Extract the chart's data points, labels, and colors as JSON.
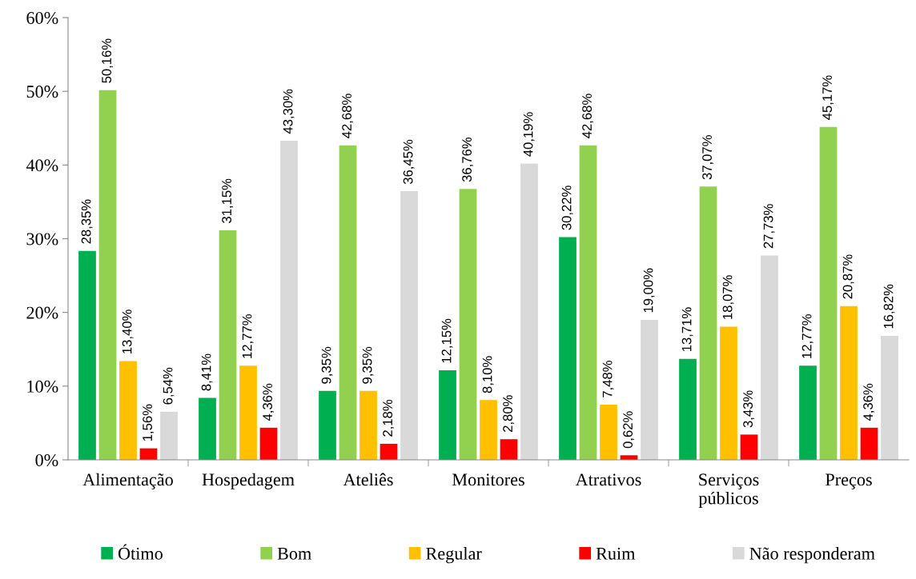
{
  "chart_data": {
    "type": "bar",
    "categories": [
      "Alimentação",
      "Hospedagem",
      "Ateliês",
      "Monitores",
      "Atrativos",
      "Serviços públicos",
      "Preços"
    ],
    "series": [
      {
        "name": "Ótimo",
        "color": "#00b050",
        "values": [
          28.35,
          8.41,
          9.35,
          12.15,
          30.22,
          13.71,
          12.77
        ],
        "value_labels": [
          "28,35%",
          "8,41%",
          "9,35%",
          "12,15%",
          "30,22%",
          "13,71%",
          "12,77%"
        ]
      },
      {
        "name": "Bom",
        "color": "#92d050",
        "values": [
          50.16,
          31.15,
          42.68,
          36.76,
          42.68,
          37.07,
          45.17
        ],
        "value_labels": [
          "50,16%",
          "31,15%",
          "42,68%",
          "36,76%",
          "42,68%",
          "37,07%",
          "45,17%"
        ]
      },
      {
        "name": "Regular",
        "color": "#ffc000",
        "values": [
          13.4,
          12.77,
          9.35,
          8.1,
          7.48,
          18.07,
          20.87
        ],
        "value_labels": [
          "13,40%",
          "12,77%",
          "9,35%",
          "8,10%",
          "7,48%",
          "18,07%",
          "20,87%"
        ]
      },
      {
        "name": "Ruim",
        "color": "#ff0000",
        "values": [
          1.56,
          4.36,
          2.18,
          2.8,
          0.62,
          3.43,
          4.36
        ],
        "value_labels": [
          "1,56%",
          "4,36%",
          "2,18%",
          "2,80%",
          "0,62%",
          "3,43%",
          "4,36%"
        ]
      },
      {
        "name": "Não responderam",
        "color": "#d9d9d9",
        "values": [
          6.54,
          43.3,
          36.45,
          40.19,
          19.0,
          27.73,
          16.82
        ],
        "value_labels": [
          "6,54%",
          "43,30%",
          "36,45%",
          "40,19%",
          "19,00%",
          "27,73%",
          "16,82%"
        ]
      }
    ],
    "ylim": [
      0,
      60
    ],
    "yticks": [
      {
        "value": 0,
        "label": "0%"
      },
      {
        "value": 10,
        "label": "10%"
      },
      {
        "value": 20,
        "label": "20%"
      },
      {
        "value": 30,
        "label": "30%"
      },
      {
        "value": 40,
        "label": "40%"
      },
      {
        "value": 50,
        "label": "50%"
      },
      {
        "value": 60,
        "label": "60%"
      }
    ],
    "grid": false,
    "legend": "bottom"
  }
}
